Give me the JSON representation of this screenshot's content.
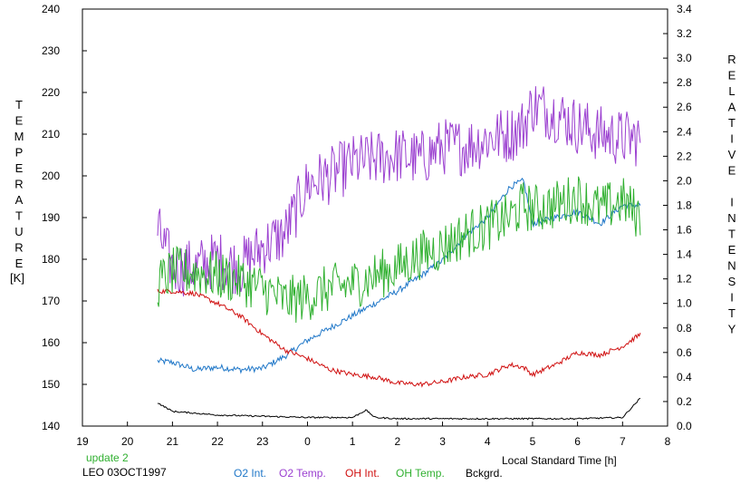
{
  "chart_data": {
    "type": "line",
    "left_axis_label": "TEMPERATURE",
    "left_axis_unit": "[K]",
    "right_axis_label": "RELATIVE INTENSITY",
    "xlabel": "Local Standard Time [h]",
    "xlim": [
      19,
      32
    ],
    "ylim_left": [
      140,
      240
    ],
    "ylim_right": [
      0.0,
      3.4
    ],
    "x_tick_labels": [
      "19",
      "20",
      "21",
      "22",
      "23",
      "0",
      "1",
      "2",
      "3",
      "4",
      "5",
      "6",
      "7",
      "8"
    ],
    "y_left_ticks": [
      140,
      150,
      160,
      170,
      180,
      190,
      200,
      210,
      220,
      230,
      240
    ],
    "y_right_ticks": [
      "0.0",
      "0.2",
      "0.4",
      "0.6",
      "0.8",
      "1.0",
      "1.2",
      "1.4",
      "1.6",
      "1.8",
      "2.0",
      "2.2",
      "2.4",
      "2.6",
      "2.8",
      "3.0",
      "3.2",
      "3.4"
    ],
    "grid": false,
    "update_text": "update 2",
    "station_text": "LEO 03OCT1997",
    "series": [
      {
        "name": "O2 Int.",
        "axis": "right",
        "color": "#1f77c8",
        "x": [
          20.67,
          21.0,
          21.5,
          22.0,
          22.5,
          23.0,
          23.5,
          24.0,
          24.5,
          25.0,
          25.5,
          26.0,
          26.5,
          27.0,
          27.5,
          28.0,
          28.5,
          28.8,
          29.0,
          29.5,
          30.0,
          30.5,
          31.0,
          31.4
        ],
        "y": [
          0.53,
          0.52,
          0.46,
          0.48,
          0.46,
          0.47,
          0.57,
          0.7,
          0.8,
          0.9,
          1.0,
          1.1,
          1.22,
          1.35,
          1.55,
          1.7,
          1.95,
          2.0,
          1.65,
          1.7,
          1.75,
          1.65,
          1.8,
          1.8
        ]
      },
      {
        "name": "O2 Temp.",
        "axis": "left",
        "color": "#9b40d0",
        "x": [
          20.67,
          21.0,
          21.5,
          22.0,
          22.5,
          23.0,
          23.5,
          24.0,
          24.5,
          25.0,
          25.5,
          26.0,
          26.5,
          27.0,
          27.5,
          28.0,
          28.5,
          28.8,
          29.0,
          29.5,
          30.0,
          30.5,
          31.0,
          31.4
        ],
        "y": [
          187,
          178,
          178,
          180,
          178,
          183,
          186,
          198,
          200,
          203,
          204,
          205,
          204,
          207,
          207,
          209,
          210,
          212,
          217,
          215,
          212,
          210,
          209,
          209
        ]
      },
      {
        "name": "OH Int.",
        "axis": "right",
        "color": "#d01010",
        "x": [
          20.67,
          21.0,
          21.5,
          22.0,
          22.5,
          23.0,
          23.5,
          24.0,
          24.5,
          25.0,
          25.5,
          26.0,
          26.5,
          27.0,
          27.5,
          28.0,
          28.5,
          28.8,
          29.0,
          29.5,
          30.0,
          30.5,
          31.0,
          31.4
        ],
        "y": [
          1.1,
          1.1,
          1.08,
          1.0,
          0.9,
          0.75,
          0.62,
          0.55,
          0.46,
          0.42,
          0.4,
          0.35,
          0.34,
          0.36,
          0.4,
          0.42,
          0.5,
          0.48,
          0.42,
          0.5,
          0.6,
          0.58,
          0.65,
          0.75
        ]
      },
      {
        "name": "OH Temp.",
        "axis": "left",
        "color": "#30b030",
        "x": [
          20.67,
          21.0,
          21.5,
          22.0,
          22.5,
          23.0,
          23.5,
          24.0,
          24.5,
          25.0,
          25.5,
          26.0,
          26.5,
          27.0,
          27.5,
          28.0,
          28.5,
          28.8,
          29.0,
          29.5,
          30.0,
          30.5,
          31.0,
          31.4
        ],
        "y": [
          174,
          177,
          177,
          176,
          175,
          173,
          170,
          171,
          173,
          174,
          176,
          178,
          181,
          183,
          186,
          188,
          190,
          193,
          192,
          193,
          195,
          192,
          194,
          190
        ]
      },
      {
        "name": "Bckgrd.",
        "axis": "right",
        "color": "#000000",
        "x": [
          20.67,
          21.0,
          22.0,
          23.0,
          24.0,
          25.0,
          25.3,
          25.5,
          26.0,
          27.0,
          28.0,
          29.0,
          30.0,
          31.0,
          31.4
        ],
        "y": [
          0.19,
          0.12,
          0.09,
          0.08,
          0.07,
          0.07,
          0.13,
          0.07,
          0.06,
          0.06,
          0.06,
          0.06,
          0.06,
          0.07,
          0.23
        ]
      }
    ]
  }
}
